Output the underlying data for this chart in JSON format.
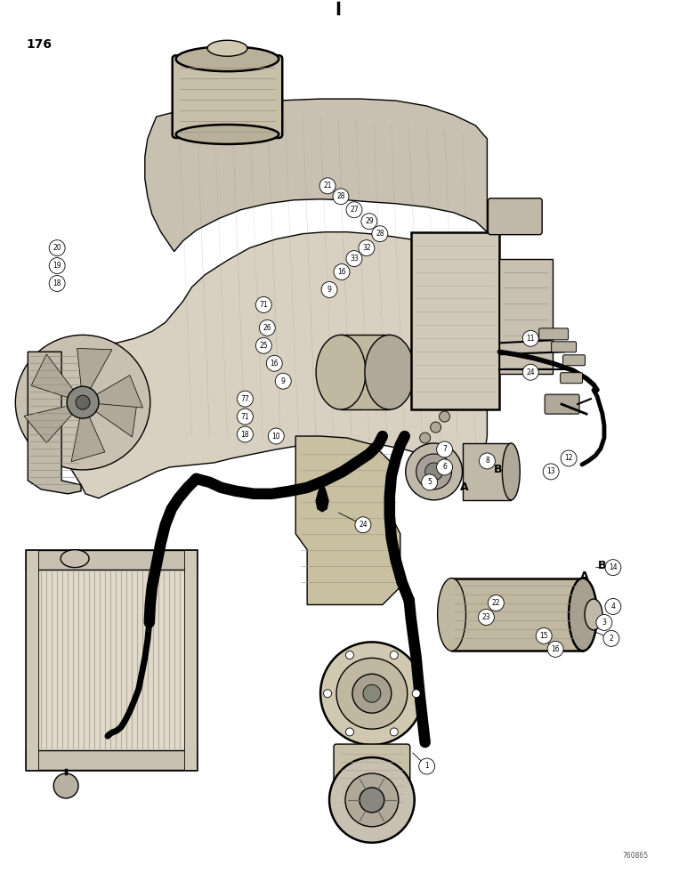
{
  "background_color": "#ffffff",
  "line_color": "#000000",
  "figsize": [
    7.72,
    10.0
  ],
  "dpi": 100,
  "page_number": "176",
  "figure_number": "760865",
  "callouts_upper": [
    [
      480,
      862,
      "1"
    ],
    [
      688,
      718,
      "2"
    ],
    [
      680,
      700,
      "3"
    ],
    [
      690,
      682,
      "4"
    ],
    [
      690,
      638,
      "14"
    ],
    [
      625,
      730,
      "16"
    ],
    [
      612,
      715,
      "15"
    ],
    [
      558,
      678,
      "22"
    ],
    [
      547,
      694,
      "23"
    ],
    [
      408,
      590,
      "24"
    ]
  ],
  "callouts_lower": [
    [
      483,
      542,
      "5"
    ],
    [
      500,
      525,
      "6"
    ],
    [
      500,
      505,
      "7"
    ],
    [
      548,
      518,
      "8"
    ],
    [
      620,
      530,
      "13"
    ],
    [
      640,
      515,
      "12"
    ],
    [
      310,
      490,
      "10"
    ],
    [
      275,
      488,
      "18"
    ],
    [
      275,
      468,
      "71"
    ],
    [
      275,
      448,
      "77"
    ],
    [
      318,
      428,
      "9"
    ],
    [
      308,
      408,
      "16"
    ],
    [
      296,
      388,
      "25"
    ],
    [
      300,
      368,
      "26"
    ],
    [
      296,
      342,
      "71"
    ],
    [
      370,
      325,
      "9"
    ],
    [
      384,
      305,
      "16"
    ],
    [
      398,
      290,
      "33"
    ],
    [
      412,
      278,
      "32"
    ],
    [
      427,
      262,
      "28"
    ],
    [
      415,
      248,
      "29"
    ],
    [
      398,
      235,
      "27"
    ],
    [
      383,
      220,
      "28"
    ],
    [
      368,
      208,
      "21"
    ],
    [
      597,
      418,
      "24"
    ],
    [
      597,
      380,
      "11"
    ],
    [
      63,
      278,
      "20"
    ],
    [
      63,
      298,
      "19"
    ],
    [
      63,
      318,
      "18"
    ]
  ],
  "AB_labels": [
    [
      658,
      648,
      "A"
    ],
    [
      678,
      636,
      "B"
    ],
    [
      522,
      548,
      "A"
    ],
    [
      560,
      528,
      "B"
    ]
  ]
}
